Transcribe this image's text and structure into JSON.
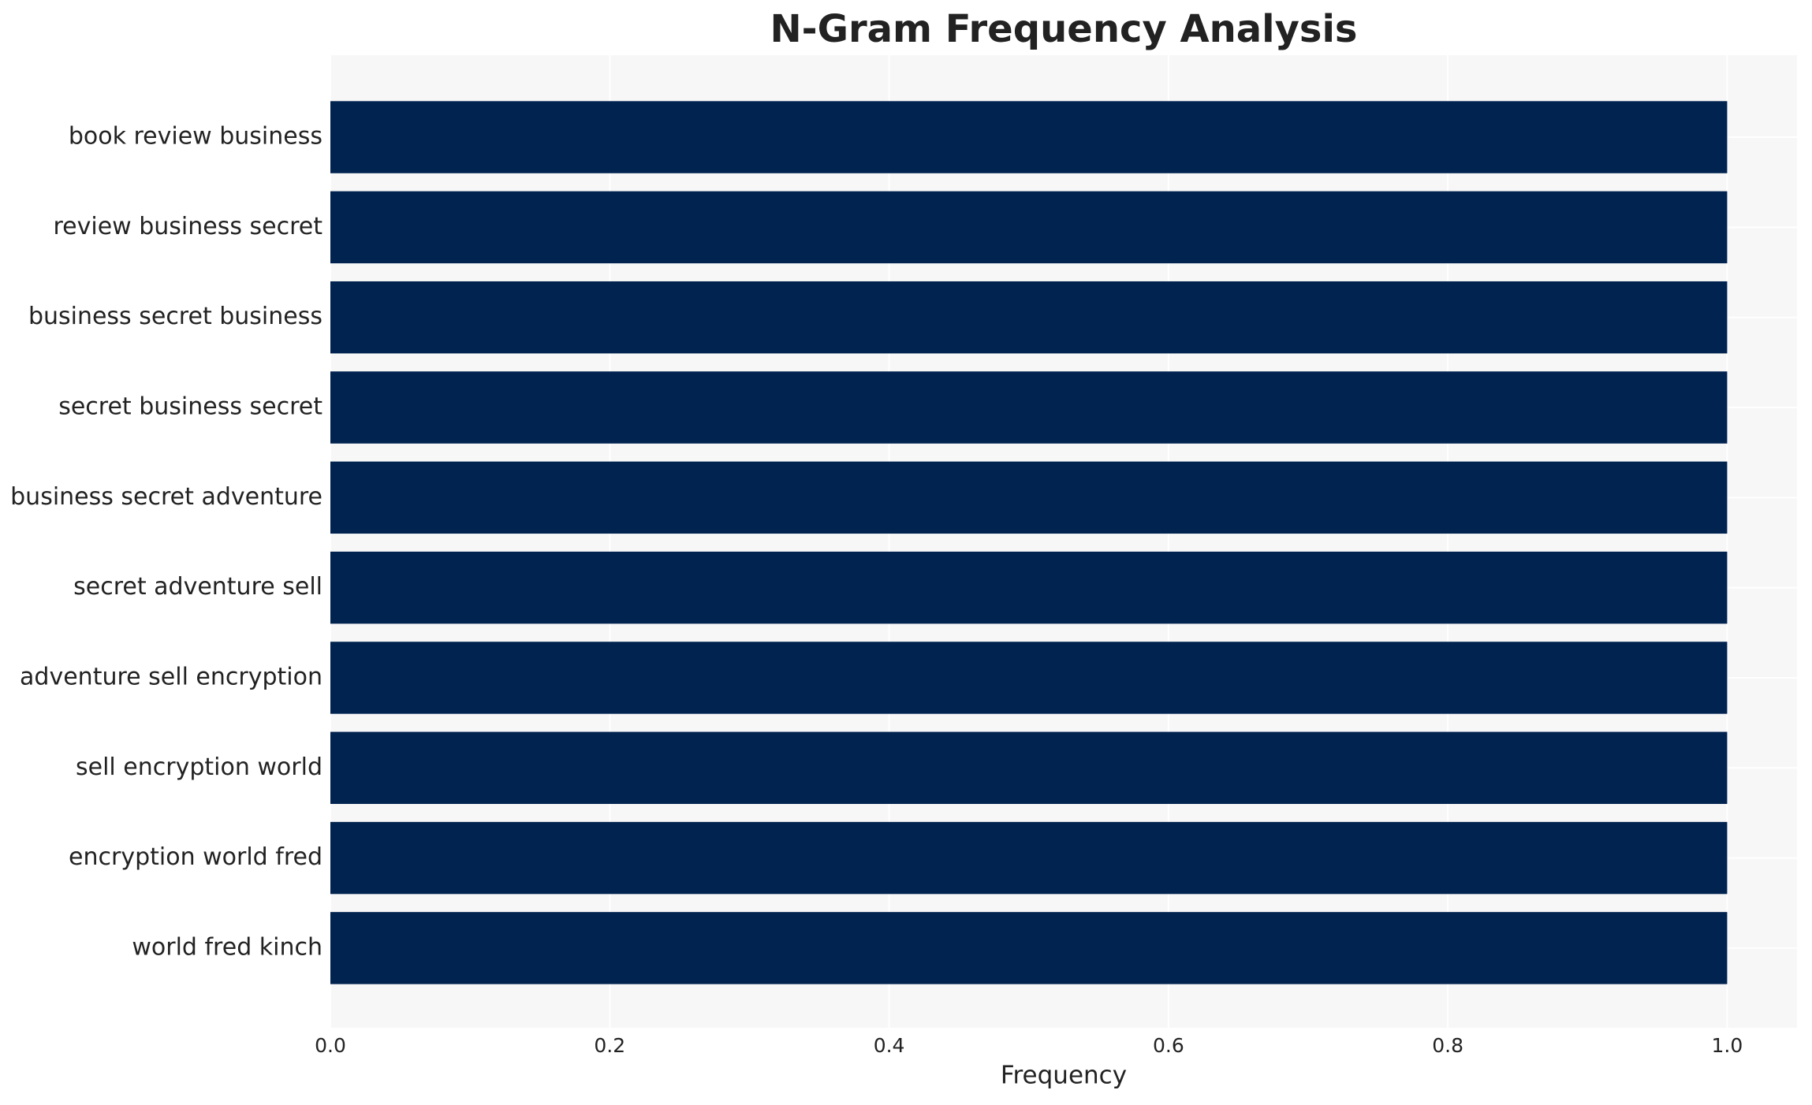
{
  "chart_data": {
    "type": "barh",
    "title": "N-Gram Frequency Analysis",
    "x_label": "Frequency",
    "categories": [
      "book review business",
      "review business secret",
      "business secret business",
      "secret business secret",
      "business secret adventure",
      "secret adventure sell",
      "adventure sell encryption",
      "sell encryption world",
      "encryption world fred",
      "world fred kinch"
    ],
    "values": [
      1,
      1,
      1,
      1,
      1,
      1,
      1,
      1,
      1,
      1
    ],
    "color": "#012350",
    "xlim": [
      0,
      1.05
    ],
    "xticks": [
      {
        "value": 0,
        "label": "0.0"
      },
      0.2,
      0.4,
      0.6,
      0.8,
      {
        "value": 1,
        "label": "1.0"
      }
    ],
    "grid": true
  }
}
